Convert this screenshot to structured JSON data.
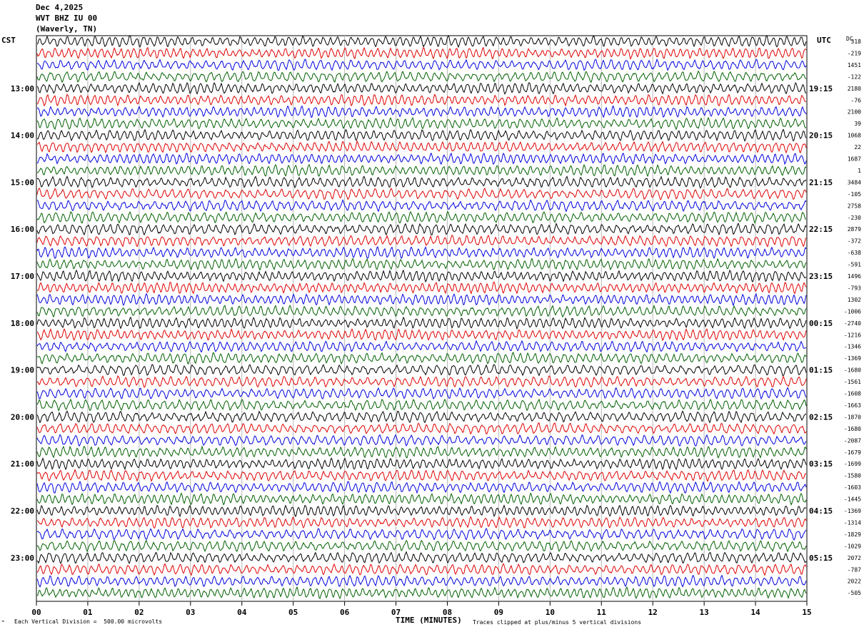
{
  "header": {
    "date": "Dec 4,2025",
    "station": "WVT BHZ IU 00",
    "location": "(Waverly, TN)"
  },
  "left_zone": "CST",
  "right_zone": "UTC",
  "dc_header": "DC",
  "chart_data": {
    "type": "line",
    "subtype": "helicorder",
    "xlabel": "TIME (MINUTES)",
    "x_ticks": [
      "00",
      "01",
      "02",
      "03",
      "04",
      "05",
      "06",
      "07",
      "08",
      "09",
      "10",
      "11",
      "12",
      "13",
      "14",
      "15"
    ],
    "xlim": [
      0,
      15
    ],
    "minutes_per_line": 15,
    "trace_colors": [
      "#000000",
      "#e00000",
      "#0000e0",
      "#006000"
    ],
    "left_hour_labels": [
      "13:00",
      "14:00",
      "15:00",
      "16:00",
      "17:00",
      "18:00",
      "19:00",
      "20:00",
      "21:00",
      "22:00",
      "23:00"
    ],
    "right_hour_labels": [
      "19:15",
      "20:15",
      "21:15",
      "22:15",
      "23:15",
      "00:15",
      "01:15",
      "02:15",
      "03:15",
      "04:15",
      "05:15"
    ],
    "dc_offsets": [
      "318",
      "-219",
      "1451",
      "-122",
      "2180",
      "-76",
      "2100",
      "39",
      "1068",
      "22",
      "1687",
      "1",
      "3484",
      "-105",
      "2758",
      "-230",
      "2879",
      "-372",
      "-638",
      "-591",
      "1496",
      "-793",
      "1302",
      "-1006",
      "-2740",
      "-1216",
      "-1346",
      "-1369",
      "-1680",
      "-1561",
      "-1608",
      "-1663",
      "-1870",
      "-1680",
      "-2087",
      "-1679",
      "-1699",
      "-1580",
      "-1603",
      "-1445",
      "-1369",
      "-1314",
      "-1829",
      "-1029",
      "2072",
      "-787",
      "2022",
      "-505"
    ],
    "scale_note": "Each Vertical Division =  500.00 microvolts",
    "clip_note": "Traces clipped at plus/minus 5 vertical divisions"
  }
}
